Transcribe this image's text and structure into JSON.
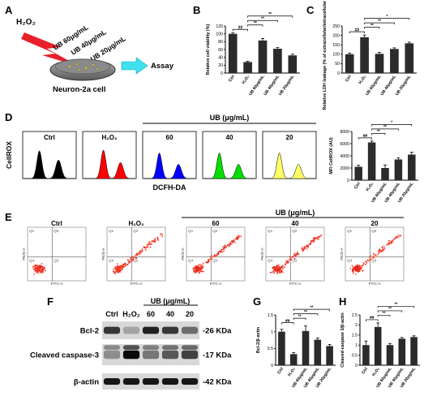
{
  "panel_letters": [
    "A",
    "B",
    "C",
    "D",
    "E",
    "F",
    "G",
    "H"
  ],
  "schematic": {
    "stimulus": "H₂O₂",
    "treatments": [
      "UB 60μg/mL",
      "UB 40μg/mL",
      "UB 20μg/mL"
    ],
    "cell_label": "Neuron-2a cell",
    "assay_label": "Assay"
  },
  "groups": [
    "Ctrl",
    "H₂O₂",
    "UB 60μg/mL",
    "UB 40μg/mL",
    "UB 20μg/mL"
  ],
  "ub_header": "UB (μg/mL)",
  "flow": {
    "panels": [
      "Ctrl",
      "H₂O₂",
      "60",
      "40",
      "20"
    ],
    "ylabel": "CellROX",
    "xlabel": "DCFH-DA",
    "colors": [
      "#000000",
      "#ff0000",
      "#0000ff",
      "#00dd00",
      "#ffff66"
    ]
  },
  "scatter": {
    "panels": [
      "Ctrl",
      "H₂O₂",
      "60",
      "40",
      "20"
    ],
    "axis_x": "FITC-A",
    "axis_y": "PE/D-A",
    "quadrants": [
      "Q1",
      "Q2",
      "Q3",
      "Q4"
    ]
  },
  "blot": {
    "lanes": [
      "Ctrl",
      "H₂O₂",
      "60",
      "40",
      "20"
    ],
    "rows": [
      {
        "name": "Bcl-2",
        "kda": "-26 KDa"
      },
      {
        "name": "Cleaved caspase-3",
        "kda": "-17 KDa"
      },
      {
        "name": "β-actin",
        "kda": "-42 KDa"
      }
    ]
  },
  "significance": [
    "##",
    "**",
    "**",
    "**",
    "*"
  ],
  "chart_data": [
    {
      "id": "B",
      "type": "bar",
      "categories": [
        "Ctrl",
        "H₂O₂",
        "UB 60μg/mL",
        "UB 40μg/mL",
        "UB 20μg/mL"
      ],
      "values": [
        100,
        28,
        83,
        62,
        45
      ],
      "errors": [
        3,
        2,
        5,
        3,
        3
      ],
      "ylabel": "Relative cell viability (%)",
      "ylim": [
        0,
        120
      ],
      "yticks": [
        0,
        20,
        40,
        60,
        80,
        100,
        120
      ],
      "sig": [
        {
          "a": 0,
          "b": 1,
          "label": "##"
        },
        {
          "a": 1,
          "b": 2,
          "label": "**"
        },
        {
          "a": 1,
          "b": 3,
          "label": "**"
        },
        {
          "a": 1,
          "b": 4,
          "label": "**"
        }
      ]
    },
    {
      "id": "C",
      "type": "bar",
      "categories": [
        "Ctrl",
        "H₂O₂",
        "UB 60μg/mL",
        "UB 40μg/mL",
        "UB 20μg/mL"
      ],
      "values": [
        100,
        190,
        102,
        128,
        158
      ],
      "errors": [
        6,
        12,
        8,
        6,
        6
      ],
      "ylabel": "Relative LDH leakage (% of extracellular/intracellular LDH)",
      "ylim": [
        0,
        250
      ],
      "yticks": [
        0,
        50,
        100,
        150,
        200,
        250
      ],
      "sig": [
        {
          "a": 0,
          "b": 1,
          "label": "##"
        },
        {
          "a": 1,
          "b": 2,
          "label": "**"
        },
        {
          "a": 1,
          "b": 3,
          "label": "**"
        },
        {
          "a": 1,
          "b": 4,
          "label": "*"
        }
      ]
    },
    {
      "id": "D",
      "type": "bar",
      "categories": [
        "Ctrl",
        "H₂O₂",
        "UB 60μg/mL",
        "UB 40μg/mL",
        "UB 20μg/mL"
      ],
      "values": [
        2200,
        6200,
        2000,
        3400,
        4200
      ],
      "errors": [
        250,
        220,
        500,
        250,
        400
      ],
      "ylabel": "MFI CellROX (AU)",
      "ylim": [
        0,
        8000
      ],
      "yticks": [
        0,
        2000,
        4000,
        6000,
        8000
      ],
      "sig": [
        {
          "a": 0,
          "b": 1,
          "label": "##"
        },
        {
          "a": 1,
          "b": 2,
          "label": "**"
        },
        {
          "a": 1,
          "b": 3,
          "label": "**"
        },
        {
          "a": 1,
          "b": 4,
          "label": "*"
        }
      ]
    },
    {
      "id": "G",
      "type": "bar",
      "categories": [
        "Ctrl",
        "H₂O₂",
        "UB 60μg/mL",
        "UB 40μg/mL",
        "UB 20μg/mL"
      ],
      "values": [
        1.0,
        0.33,
        1.02,
        0.76,
        0.57
      ],
      "errors": [
        0.07,
        0.05,
        0.15,
        0.05,
        0.05
      ],
      "ylabel": "Bcl-2/β-actin",
      "ylim": [
        0,
        1.5
      ],
      "yticks": [
        0,
        0.5,
        1.0,
        1.5
      ],
      "sig": [
        {
          "a": 0,
          "b": 1,
          "label": "##"
        },
        {
          "a": 1,
          "b": 2,
          "label": "**"
        },
        {
          "a": 1,
          "b": 3,
          "label": "**"
        },
        {
          "a": 1,
          "b": 4,
          "label": "**"
        }
      ]
    },
    {
      "id": "H",
      "type": "bar",
      "categories": [
        "Ctrl",
        "H₂O₂",
        "UB 60μg/mL",
        "UB 40μg/mL",
        "UB 20μg/mL"
      ],
      "values": [
        1.0,
        1.9,
        1.0,
        1.32,
        1.4
      ],
      "errors": [
        0.2,
        0.2,
        0.08,
        0.06,
        0.06
      ],
      "ylabel": "Cleaved-caspase 3/β-actin",
      "ylim": [
        0,
        2.5
      ],
      "yticks": [
        0,
        0.5,
        1.0,
        1.5,
        2.0,
        2.5
      ],
      "sig": [
        {
          "a": 0,
          "b": 1,
          "label": "##"
        },
        {
          "a": 1,
          "b": 2,
          "label": "**"
        },
        {
          "a": 1,
          "b": 3,
          "label": "**"
        },
        {
          "a": 1,
          "b": 4,
          "label": "**"
        }
      ]
    }
  ]
}
